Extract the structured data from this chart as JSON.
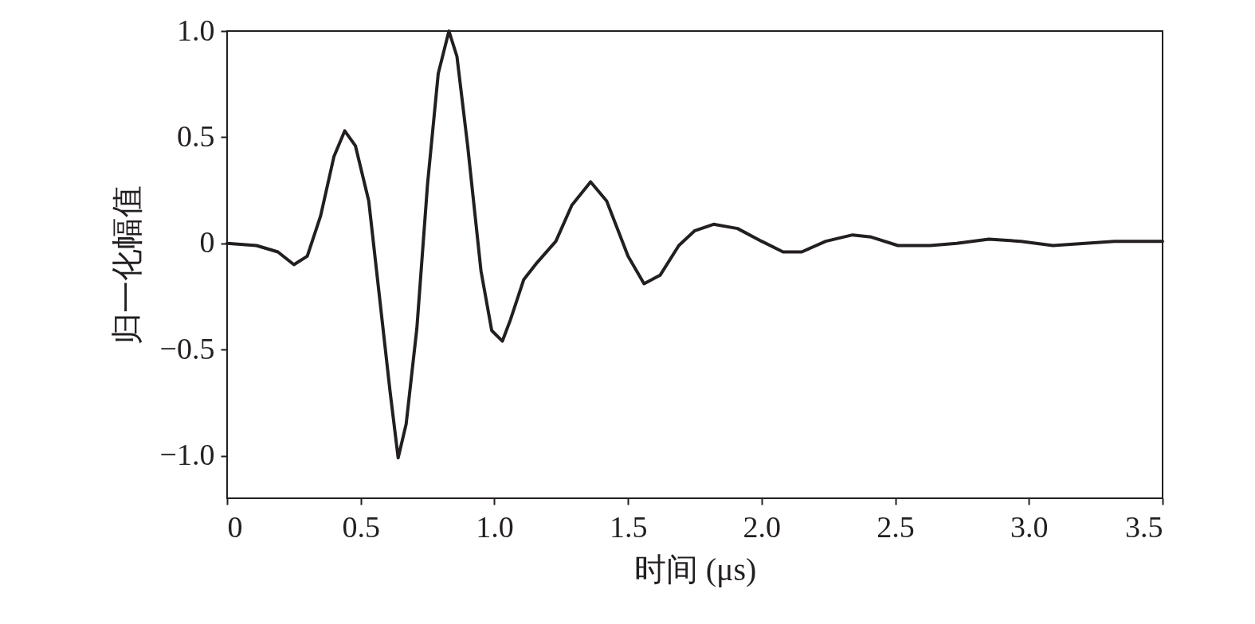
{
  "chart_data": {
    "type": "line",
    "xlabel": "时间 (μs)",
    "ylabel": "归一化幅值",
    "xlim": [
      0,
      3.5
    ],
    "ylim": [
      -1.2,
      1.0
    ],
    "xticks": [
      0,
      0.5,
      {
        "value": 1,
        "label": "1.0"
      },
      1.5,
      {
        "value": 2,
        "label": "2.0"
      },
      2.5,
      {
        "value": 3,
        "label": "3.0"
      },
      3.5
    ],
    "yticks": [
      {
        "value": -1,
        "label": "−1.0"
      },
      {
        "value": -0.5,
        "label": "−0.5"
      },
      0,
      0.5,
      {
        "value": 1,
        "label": "1.0"
      }
    ],
    "grid": false,
    "marker": "none",
    "line_style": "solid",
    "series": [
      {
        "color": "#231f20",
        "x": [
          0,
          0.11,
          0.19,
          0.25,
          0.3,
          0.35,
          0.4,
          0.44,
          0.48,
          0.53,
          0.57,
          0.61,
          0.64,
          0.67,
          0.71,
          0.75,
          0.79,
          0.83,
          0.86,
          0.9,
          0.95,
          0.99,
          1.03,
          1.06,
          1.11,
          1.16,
          1.23,
          1.29,
          1.36,
          1.42,
          1.5,
          1.56,
          1.62,
          1.69,
          1.75,
          1.82,
          1.91,
          2.0,
          2.08,
          2.15,
          2.24,
          2.34,
          2.41,
          2.51,
          2.63,
          2.73,
          2.85,
          2.97,
          3.09,
          3.21,
          3.32,
          3.5
        ],
        "values": [
          0,
          -0.01,
          -0.04,
          -0.1,
          -0.06,
          0.13,
          0.41,
          0.53,
          0.46,
          0.2,
          -0.25,
          -0.7,
          -1.01,
          -0.85,
          -0.4,
          0.28,
          0.8,
          1.0,
          0.88,
          0.46,
          -0.13,
          -0.41,
          -0.46,
          -0.36,
          -0.17,
          -0.09,
          0.01,
          0.18,
          0.29,
          0.2,
          -0.06,
          -0.19,
          -0.15,
          -0.01,
          0.06,
          0.09,
          0.07,
          0.01,
          -0.04,
          -0.04,
          0.01,
          0.04,
          0.03,
          -0.01,
          -0.01,
          0,
          0.02,
          0.01,
          -0.01,
          0,
          0.01,
          0.01
        ]
      }
    ]
  }
}
